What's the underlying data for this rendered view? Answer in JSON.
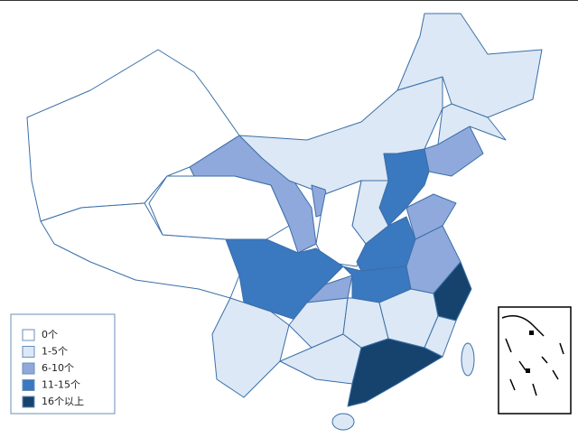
{
  "legend": {
    "items": [
      {
        "label": "0个",
        "color": "#ffffff"
      },
      {
        "label": "1-5个",
        "color": "#dce8f5"
      },
      {
        "label": "6-10个",
        "color": "#8fa9dc"
      },
      {
        "label": "11-15个",
        "color": "#3a78c0"
      },
      {
        "label": "16个以上",
        "color": "#16436e"
      }
    ]
  }
}
